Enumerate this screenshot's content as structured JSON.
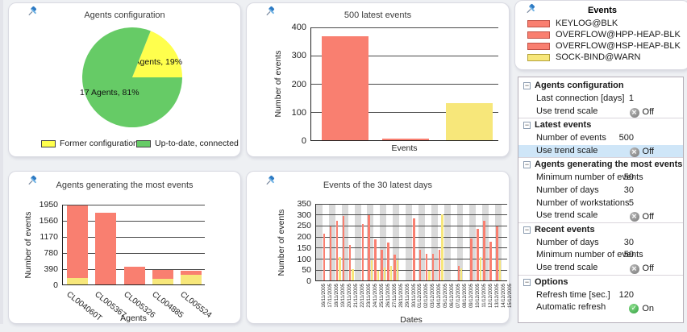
{
  "colors": {
    "red": "#f97f70",
    "red_border": "#c05045",
    "yellow": "#f7e77a",
    "yellow_border": "#b3a23b",
    "pie_yellow": "#ffff4d",
    "pie_green": "#66cb66",
    "band": "#dadada",
    "selected_row": "#cfe6f8",
    "off_icon": "#7d7d7d",
    "on_icon": "#2f9e3f",
    "pin": "#2e7bc4"
  },
  "panels": {
    "pie": {
      "title": "Agents configuration",
      "slices": [
        {
          "label": "4 Agents, 19%",
          "value": 19,
          "color_key": "pie_yellow"
        },
        {
          "label": "17 Agents, 81%",
          "value": 81,
          "color_key": "pie_green"
        }
      ],
      "legend": [
        {
          "label": "Former configuration",
          "color_key": "pie_yellow"
        },
        {
          "label": "Up-to-date, connected",
          "color_key": "pie_green"
        }
      ]
    },
    "latest": {
      "title": "500 latest events",
      "ylabel": "Number of events",
      "xlabel": "Events",
      "ymax": 400,
      "yticks": [
        0,
        100,
        200,
        300,
        400
      ],
      "bars": [
        {
          "value": 367,
          "color_key": "red"
        },
        {
          "value": 3,
          "color_key": "red"
        },
        {
          "value": 130,
          "color_key": "yellow"
        }
      ]
    },
    "events_legend": {
      "title": "Events",
      "items": [
        {
          "label": "KEYLOG@BLK",
          "color_key": "red"
        },
        {
          "label": "OVERFLOW@HPP-HEAP-BLK",
          "color_key": "red"
        },
        {
          "label": "OVERFLOW@HSP-HEAP-BLK",
          "color_key": "red"
        },
        {
          "label": "SOCK-BIND@WARN",
          "color_key": "yellow"
        }
      ]
    },
    "agents": {
      "title": "Agents generating the most events",
      "ylabel": "Number of events",
      "xlabel": "Agents",
      "ymax": 1950,
      "yticks": [
        0,
        390,
        780,
        1170,
        1560,
        1950
      ],
      "bars": [
        {
          "agent": "CL004060T",
          "red": 1760,
          "yellow": 160
        },
        {
          "agent": "CL005367",
          "red": 1730,
          "yellow": 0
        },
        {
          "agent": "CL005326",
          "red": 430,
          "yellow": 0
        },
        {
          "agent": "CL004885",
          "red": 220,
          "yellow": 140
        },
        {
          "agent": "CL005524",
          "red": 95,
          "yellow": 240
        }
      ]
    },
    "days": {
      "title": "Events of the 30 latest days",
      "ylabel": "Number of events",
      "xlabel": "Dates",
      "ymax": 350,
      "yticks": [
        0,
        50,
        100,
        150,
        200,
        250,
        300,
        350
      ],
      "days": [
        {
          "d": "16/11/2005",
          "r": 0,
          "y": 0
        },
        {
          "d": "17/11/2005",
          "r": 210,
          "y": 0
        },
        {
          "d": "18/11/2005",
          "r": 245,
          "y": 0
        },
        {
          "d": "19/11/2005",
          "r": 270,
          "y": 105
        },
        {
          "d": "20/11/2005",
          "r": 290,
          "y": 0
        },
        {
          "d": "21/11/2005",
          "r": 160,
          "y": 50
        },
        {
          "d": "22/11/2005",
          "r": 0,
          "y": 0
        },
        {
          "d": "23/11/2005",
          "r": 255,
          "y": 0
        },
        {
          "d": "24/11/2005",
          "r": 295,
          "y": 90
        },
        {
          "d": "25/11/2005",
          "r": 185,
          "y": 45
        },
        {
          "d": "26/11/2005",
          "r": 140,
          "y": 60
        },
        {
          "d": "27/11/2005",
          "r": 170,
          "y": 65
        },
        {
          "d": "28/11/2005",
          "r": 115,
          "y": 90
        },
        {
          "d": "29/11/2005",
          "r": 0,
          "y": 0
        },
        {
          "d": "30/11/2005",
          "r": 0,
          "y": 0
        },
        {
          "d": "01/12/2005",
          "r": 280,
          "y": 0
        },
        {
          "d": "02/12/2005",
          "r": 140,
          "y": 0
        },
        {
          "d": "03/12/2005",
          "r": 120,
          "y": 45
        },
        {
          "d": "04/12/2005",
          "r": 120,
          "y": 0
        },
        {
          "d": "05/12/2005",
          "r": 140,
          "y": 300
        },
        {
          "d": "06/12/2005",
          "r": 0,
          "y": 0
        },
        {
          "d": "07/12/2005",
          "r": 0,
          "y": 0
        },
        {
          "d": "08/12/2005",
          "r": 65,
          "y": 55
        },
        {
          "d": "09/12/2005",
          "r": 0,
          "y": 0
        },
        {
          "d": "10/12/2005",
          "r": 190,
          "y": 0
        },
        {
          "d": "11/12/2005",
          "r": 235,
          "y": 105
        },
        {
          "d": "12/12/2005",
          "r": 270,
          "y": 0
        },
        {
          "d": "13/12/2005",
          "r": 175,
          "y": 0
        },
        {
          "d": "14/12/2005",
          "r": 245,
          "y": 90
        },
        {
          "d": "15/12/2005",
          "r": 0,
          "y": 0
        }
      ]
    },
    "settings": {
      "sections": [
        {
          "title": "Agents configuration",
          "rows": [
            {
              "label": "Last connection [days]",
              "value": "1"
            },
            {
              "label": "Use trend scale",
              "toggle": "off",
              "state_label": "Off"
            }
          ]
        },
        {
          "title": "Latest events",
          "rows": [
            {
              "label": "Number of events",
              "value": "500"
            },
            {
              "label": "Use trend scale",
              "toggle": "off",
              "state_label": "Off",
              "selected": true
            }
          ]
        },
        {
          "title": "Agents generating the most events",
          "rows": [
            {
              "label": "Minimum number of events",
              "value": "50"
            },
            {
              "label": "Number of days",
              "value": "30"
            },
            {
              "label": "Number of workstations",
              "value": "5"
            },
            {
              "label": "Use trend scale",
              "toggle": "off",
              "state_label": "Off"
            }
          ]
        },
        {
          "title": "Recent events",
          "rows": [
            {
              "label": "Number of days",
              "value": "30"
            },
            {
              "label": "Minimum number of events",
              "value": "50"
            },
            {
              "label": "Use trend scale",
              "toggle": "off",
              "state_label": "Off"
            }
          ]
        },
        {
          "title": "Options",
          "rows": [
            {
              "label": "Refresh time [sec.]",
              "value": "120"
            },
            {
              "label": "Automatic refresh",
              "toggle": "on",
              "state_label": "On"
            }
          ]
        }
      ]
    }
  }
}
